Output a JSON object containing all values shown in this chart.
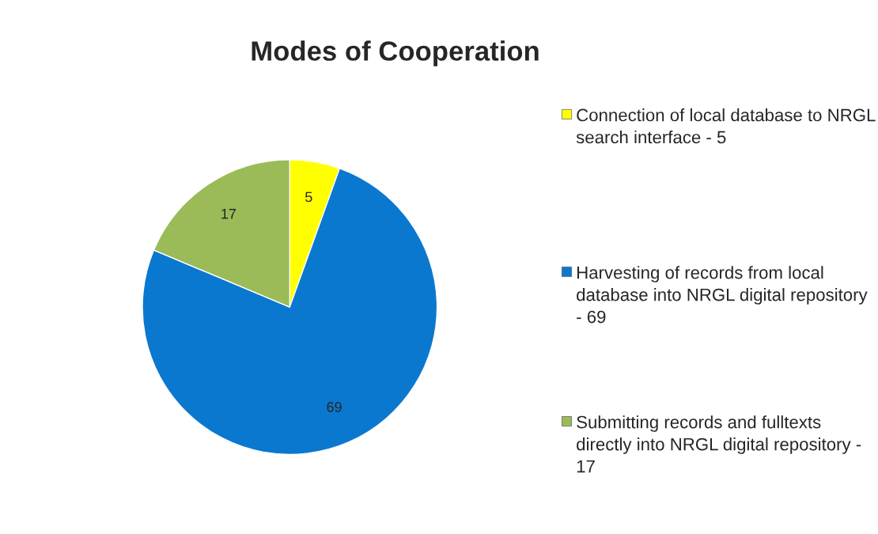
{
  "chart_data": {
    "type": "pie",
    "title": "Modes of Cooperation",
    "categories": [
      "Connection of local database to NRGL search interface - 5",
      "Harvesting of records from local database into NRGL digital repository - 69",
      "Submitting records and fulltexts directly into NRGL digital repository - 17"
    ],
    "values": [
      5,
      69,
      17
    ],
    "colors": [
      "#ffff00",
      "#0b78d0",
      "#9bbb59"
    ],
    "data_labels": true,
    "legend": "right"
  }
}
